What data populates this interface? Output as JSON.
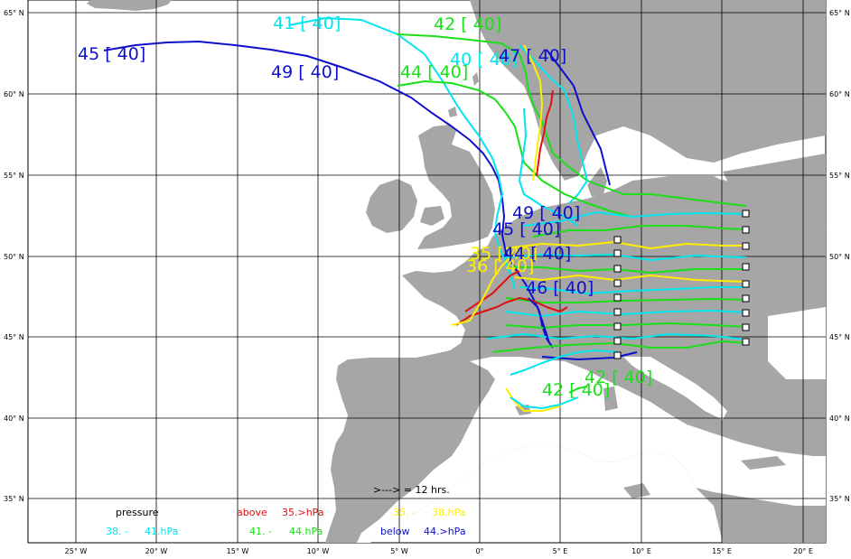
{
  "colors": {
    "land": "#a6a6a6",
    "sea": "#ffffff",
    "grid": "#000000",
    "cyan": "#00e5ee",
    "green": "#19e019",
    "yellow": "#ffee00",
    "red": "#e01010",
    "blue": "#1010cc"
  },
  "map": {
    "lat_labels": [
      "65° N",
      "60° N",
      "55° N",
      "50° N",
      "45° N",
      "40° N",
      "35° N"
    ],
    "lon_labels": [
      "25° W",
      "20° W",
      "15° W",
      "10° W",
      "5° W",
      "0°",
      "5° E",
      "10° E",
      "15° E",
      "20° E"
    ]
  },
  "trajectory_labels": [
    {
      "text": "41 [ 40]",
      "color": "cyan"
    },
    {
      "text": "42 [ 40]",
      "color": "green"
    },
    {
      "text": "45 [ 40]",
      "color": "blue"
    },
    {
      "text": "49 [ 40]",
      "color": "blue"
    },
    {
      "text": "44 [ 40]",
      "color": "green"
    },
    {
      "text": "40 [ 40]",
      "color": "cyan"
    },
    {
      "text": "47 [ 40]",
      "color": "blue"
    },
    {
      "text": "49 [ 40]",
      "color": "blue"
    },
    {
      "text": "45 [ 40]",
      "color": "blue"
    },
    {
      "text": "35 [ 40]",
      "color": "yellow"
    },
    {
      "text": "44 [ 40]",
      "color": "blue"
    },
    {
      "text": "36 [ 40]",
      "color": "yellow"
    },
    {
      "text": "46 [ 40]",
      "color": "blue"
    },
    {
      "text": "42 [ 40]",
      "color": "green"
    },
    {
      "text": "42 [ 40]",
      "color": "green"
    }
  ],
  "legend": {
    "arrow_note": ">---> = 12 hrs.",
    "title": "pressure",
    "above_label": "above",
    "above_value": "35.>hPa",
    "range1": "35. -",
    "range1_end": "38.hPa",
    "range2": "38. -",
    "range2_end": "41.hPa",
    "range3": "41. -",
    "range3_end": "44.hPa",
    "below_label": "below",
    "below_value": "44.>hPa"
  }
}
